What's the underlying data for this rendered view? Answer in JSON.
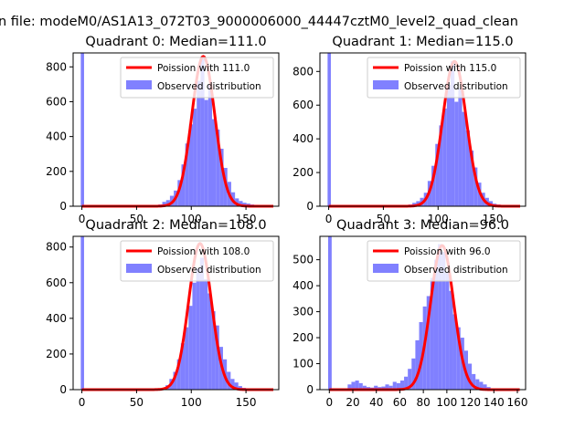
{
  "suptitle": "n file: modeM0/AS1A13_072T03_9000006000_44447cztM0_level2_quad_clean",
  "colors": {
    "hist": "#8080ff",
    "poisson": "#ff0000"
  },
  "chart_data": [
    {
      "type": "bar",
      "title": "Quadrant 0: Median=111.0",
      "xlim": [
        -8,
        180
      ],
      "ylim": [
        0,
        880
      ],
      "xticks": [
        0,
        50,
        100,
        150
      ],
      "yticks": [
        0,
        200,
        400,
        600,
        800
      ],
      "legend": [
        "Poission with 111.0",
        "Observed distribution"
      ],
      "legend_position": "top-right",
      "poisson_mean": 111.0,
      "poisson_peak": 860,
      "bin_width": 3.5,
      "bins": [
        [
          0,
          880
        ],
        [
          70,
          10
        ],
        [
          73.5,
          25
        ],
        [
          77,
          35
        ],
        [
          80.5,
          60
        ],
        [
          84,
          90
        ],
        [
          87.5,
          150
        ],
        [
          91,
          240
        ],
        [
          94.5,
          360
        ],
        [
          98,
          470
        ],
        [
          101.5,
          560
        ],
        [
          105,
          720
        ],
        [
          108.5,
          860
        ],
        [
          112,
          610
        ],
        [
          115.5,
          700
        ],
        [
          119,
          500
        ],
        [
          122.5,
          440
        ],
        [
          126,
          330
        ],
        [
          129.5,
          220
        ],
        [
          133,
          140
        ],
        [
          136.5,
          80
        ],
        [
          140,
          45
        ],
        [
          143.5,
          30
        ],
        [
          147,
          20
        ],
        [
          150.5,
          15
        ],
        [
          154,
          10
        ],
        [
          157.5,
          8
        ]
      ]
    },
    {
      "type": "bar",
      "title": "Quadrant 1: Median=115.0",
      "xlim": [
        -8,
        180
      ],
      "ylim": [
        0,
        910
      ],
      "xticks": [
        0,
        50,
        100,
        150
      ],
      "yticks": [
        0,
        200,
        400,
        600,
        800
      ],
      "legend": [
        "Poission with 115.0",
        "Observed distribution"
      ],
      "legend_position": "top-right",
      "poisson_mean": 115.0,
      "poisson_peak": 860,
      "bin_width": 3.5,
      "bins": [
        [
          0,
          910
        ],
        [
          73,
          10
        ],
        [
          76.5,
          20
        ],
        [
          80,
          30
        ],
        [
          83.5,
          50
        ],
        [
          87,
          80
        ],
        [
          90.5,
          150
        ],
        [
          94,
          240
        ],
        [
          97.5,
          370
        ],
        [
          101,
          480
        ],
        [
          104.5,
          580
        ],
        [
          108,
          720
        ],
        [
          111.5,
          860
        ],
        [
          115,
          620
        ],
        [
          118.5,
          700
        ],
        [
          122,
          560
        ],
        [
          125.5,
          450
        ],
        [
          129,
          330
        ],
        [
          132.5,
          230
        ],
        [
          136,
          140
        ],
        [
          139.5,
          80
        ],
        [
          143,
          50
        ],
        [
          146.5,
          30
        ],
        [
          150,
          15
        ],
        [
          153.5,
          10
        ]
      ]
    },
    {
      "type": "bar",
      "title": "Quadrant 2: Median=108.0",
      "xlim": [
        -8,
        180
      ],
      "ylim": [
        0,
        860
      ],
      "xticks": [
        0,
        50,
        100,
        150
      ],
      "yticks": [
        0,
        200,
        400,
        600,
        800
      ],
      "legend": [
        "Poission with 108.0",
        "Observed distribution"
      ],
      "legend_position": "top-right",
      "poisson_mean": 108.0,
      "poisson_peak": 820,
      "bin_width": 3.5,
      "bins": [
        [
          0,
          860
        ],
        [
          73,
          10
        ],
        [
          76.5,
          25
        ],
        [
          80,
          60
        ],
        [
          83.5,
          100
        ],
        [
          87,
          170
        ],
        [
          90.5,
          260
        ],
        [
          94,
          350
        ],
        [
          97.5,
          470
        ],
        [
          101,
          600
        ],
        [
          104.5,
          680
        ],
        [
          108,
          740
        ],
        [
          111.5,
          620
        ],
        [
          115,
          540
        ],
        [
          118.5,
          440
        ],
        [
          122,
          360
        ],
        [
          125.5,
          240
        ],
        [
          129,
          170
        ],
        [
          132.5,
          100
        ],
        [
          136,
          60
        ],
        [
          139.5,
          40
        ],
        [
          143,
          20
        ],
        [
          146.5,
          10
        ]
      ]
    },
    {
      "type": "bar",
      "title": "Quadrant 3: Median=96.0",
      "xlim": [
        -8,
        167
      ],
      "ylim": [
        0,
        590
      ],
      "xticks": [
        0,
        20,
        40,
        60,
        80,
        100,
        120,
        140,
        160
      ],
      "yticks": [
        0,
        100,
        200,
        300,
        400,
        500
      ],
      "legend": [
        "Poission with 96.0",
        "Observed distribution"
      ],
      "legend_position": "top-right",
      "poisson_mean": 96.0,
      "poisson_peak": 555,
      "bin_width": 3.2,
      "bins": [
        [
          0,
          590
        ],
        [
          6,
          5
        ],
        [
          9.2,
          5
        ],
        [
          12.4,
          5
        ],
        [
          15.6,
          20
        ],
        [
          18.8,
          30
        ],
        [
          22,
          35
        ],
        [
          25.2,
          25
        ],
        [
          28.4,
          15
        ],
        [
          31.6,
          10
        ],
        [
          34.8,
          8
        ],
        [
          38,
          15
        ],
        [
          41.2,
          10
        ],
        [
          44.4,
          12
        ],
        [
          47.6,
          20
        ],
        [
          50.8,
          15
        ],
        [
          54,
          30
        ],
        [
          57.2,
          25
        ],
        [
          60.4,
          35
        ],
        [
          63.6,
          50
        ],
        [
          66.8,
          80
        ],
        [
          70,
          120
        ],
        [
          73.2,
          190
        ],
        [
          76.4,
          260
        ],
        [
          79.6,
          320
        ],
        [
          82.8,
          360
        ],
        [
          86,
          430
        ],
        [
          89.2,
          500
        ],
        [
          92.4,
          560
        ],
        [
          95.6,
          530
        ],
        [
          98.8,
          450
        ],
        [
          102,
          380
        ],
        [
          105.2,
          290
        ],
        [
          108.4,
          240
        ],
        [
          111.6,
          200
        ],
        [
          114.8,
          150
        ],
        [
          118,
          100
        ],
        [
          121.2,
          60
        ],
        [
          124.4,
          40
        ],
        [
          127.6,
          30
        ],
        [
          130.8,
          20
        ],
        [
          134,
          10
        ]
      ]
    }
  ]
}
